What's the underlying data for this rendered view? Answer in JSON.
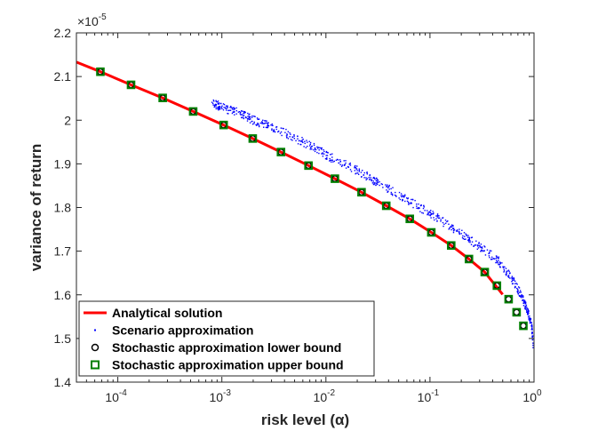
{
  "chart_data": {
    "type": "line",
    "xscale": "log",
    "xlabel": "risk level (α)",
    "ylabel": "variance of return",
    "y_exponent_label": "×10",
    "y_exponent_power": "-5",
    "xlim": [
      4e-05,
      1
    ],
    "ylim": [
      1.4,
      2.2
    ],
    "x_ticks": [
      0.0001,
      0.001,
      0.01,
      0.1,
      1
    ],
    "x_tick_labels": [
      {
        "base": "10",
        "exp": "-4"
      },
      {
        "base": "10",
        "exp": "-3"
      },
      {
        "base": "10",
        "exp": "-2"
      },
      {
        "base": "10",
        "exp": "-1"
      },
      {
        "base": "10",
        "exp": "0"
      }
    ],
    "y_ticks": [
      1.4,
      1.5,
      1.6,
      1.7,
      1.8,
      1.9,
      2.0,
      2.1,
      2.2
    ],
    "y_tick_labels": [
      "1.4",
      "1.5",
      "1.6",
      "1.7",
      "1.8",
      "1.9",
      "2",
      "2.1",
      "2.2"
    ],
    "colors": {
      "analytical": "#ff0000",
      "scenario": "#0000ff",
      "lower": "#000000",
      "upper": "#008000"
    },
    "legend": {
      "placement": "bottom-left",
      "entries": [
        {
          "label": "Analytical solution",
          "marker": "line",
          "color": "#ff0000"
        },
        {
          "label": "Scenario approximation",
          "marker": "dot",
          "color": "#0000ff"
        },
        {
          "label": "Stochastic approximation lower bound",
          "marker": "circle",
          "color": "#000000"
        },
        {
          "label": "Stochastic approximation upper bound",
          "marker": "square",
          "color": "#008000"
        }
      ]
    },
    "series": [
      {
        "name": "Analytical solution",
        "style": "line",
        "x": [
          4e-05,
          6.8e-05,
          0.000134,
          0.00027,
          0.00053,
          0.00104,
          0.00198,
          0.0037,
          0.0068,
          0.0122,
          0.022,
          0.038,
          0.064,
          0.103,
          0.16,
          0.237,
          0.336,
          0.5
        ],
        "y": [
          2.133,
          2.111,
          2.081,
          2.051,
          2.02,
          1.989,
          1.958,
          1.927,
          1.896,
          1.866,
          1.835,
          1.804,
          1.774,
          1.743,
          1.713,
          1.682,
          1.652,
          1.601
        ]
      },
      {
        "name": "Scenario approximation",
        "style": "scatter",
        "x": [
          0.0008,
          0.001,
          0.0015,
          0.002,
          0.003,
          0.005,
          0.008,
          0.012,
          0.02,
          0.03,
          0.05,
          0.08,
          0.12,
          0.2,
          0.3,
          0.45,
          0.6,
          0.75,
          0.85,
          0.95,
          1.0
        ],
        "y": [
          2.04,
          2.03,
          2.015,
          2.0,
          1.985,
          1.96,
          1.935,
          1.91,
          1.885,
          1.86,
          1.83,
          1.8,
          1.775,
          1.74,
          1.71,
          1.68,
          1.64,
          1.6,
          1.57,
          1.53,
          1.46
        ],
        "spread": 0.01,
        "points_per_segment": 40
      },
      {
        "name": "Stochastic approximation lower bound",
        "style": "marker-circle",
        "x": [
          6.8e-05,
          0.000134,
          0.00027,
          0.00053,
          0.00104,
          0.00198,
          0.0037,
          0.0068,
          0.0122,
          0.022,
          0.038,
          0.064,
          0.103,
          0.16,
          0.237,
          0.336,
          0.44,
          0.57,
          0.68,
          0.79
        ],
        "y": [
          2.111,
          2.081,
          2.051,
          2.02,
          1.989,
          1.958,
          1.927,
          1.896,
          1.866,
          1.835,
          1.804,
          1.774,
          1.743,
          1.713,
          1.682,
          1.652,
          1.621,
          1.59,
          1.56,
          1.529
        ]
      },
      {
        "name": "Stochastic approximation upper bound",
        "style": "marker-square",
        "x": [
          6.8e-05,
          0.000134,
          0.00027,
          0.00053,
          0.00104,
          0.00198,
          0.0037,
          0.0068,
          0.0122,
          0.022,
          0.038,
          0.064,
          0.103,
          0.16,
          0.237,
          0.336,
          0.44,
          0.57,
          0.68,
          0.79
        ],
        "y": [
          2.111,
          2.081,
          2.051,
          2.02,
          1.989,
          1.958,
          1.927,
          1.896,
          1.866,
          1.835,
          1.804,
          1.774,
          1.743,
          1.713,
          1.682,
          1.652,
          1.621,
          1.59,
          1.56,
          1.529
        ]
      }
    ]
  }
}
